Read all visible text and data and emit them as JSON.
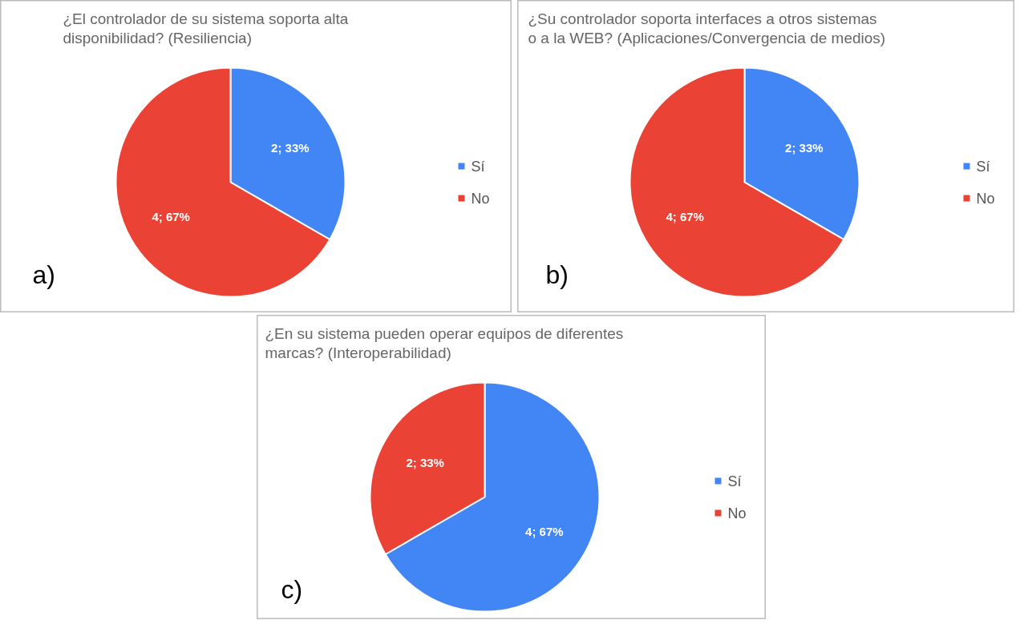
{
  "chart_data": [
    {
      "type": "pie",
      "title": "¿El controlador de su sistema soporta alta disponibilidad? (Resiliencia)",
      "categories": [
        "Sí",
        "No"
      ],
      "values": [
        2,
        4
      ],
      "colors": [
        "#4285f4",
        "#ea4335"
      ],
      "value_labels": [
        "2; 33%",
        "4; 67%"
      ],
      "legend": "right",
      "annotations": [
        "a)"
      ]
    },
    {
      "type": "pie",
      "title": "¿Su controlador soporta interfaces a otros sistemas o a la WEB? (Aplicaciones/Convergencia de medios)",
      "categories": [
        "Sí",
        "No"
      ],
      "values": [
        2,
        4
      ],
      "colors": [
        "#4285f4",
        "#ea4335"
      ],
      "value_labels": [
        "2; 33%",
        "4; 67%"
      ],
      "legend": "right",
      "annotations": [
        "b)"
      ]
    },
    {
      "type": "pie",
      "title": "¿En su sistema pueden operar equipos de diferentes marcas? (Interoperabilidad)",
      "categories": [
        "Sí",
        "No"
      ],
      "values": [
        4,
        2
      ],
      "colors": [
        "#4285f4",
        "#ea4335"
      ],
      "value_labels": [
        "4; 67%",
        "2; 33%"
      ],
      "legend": "right",
      "annotations": [
        "c)"
      ]
    }
  ]
}
